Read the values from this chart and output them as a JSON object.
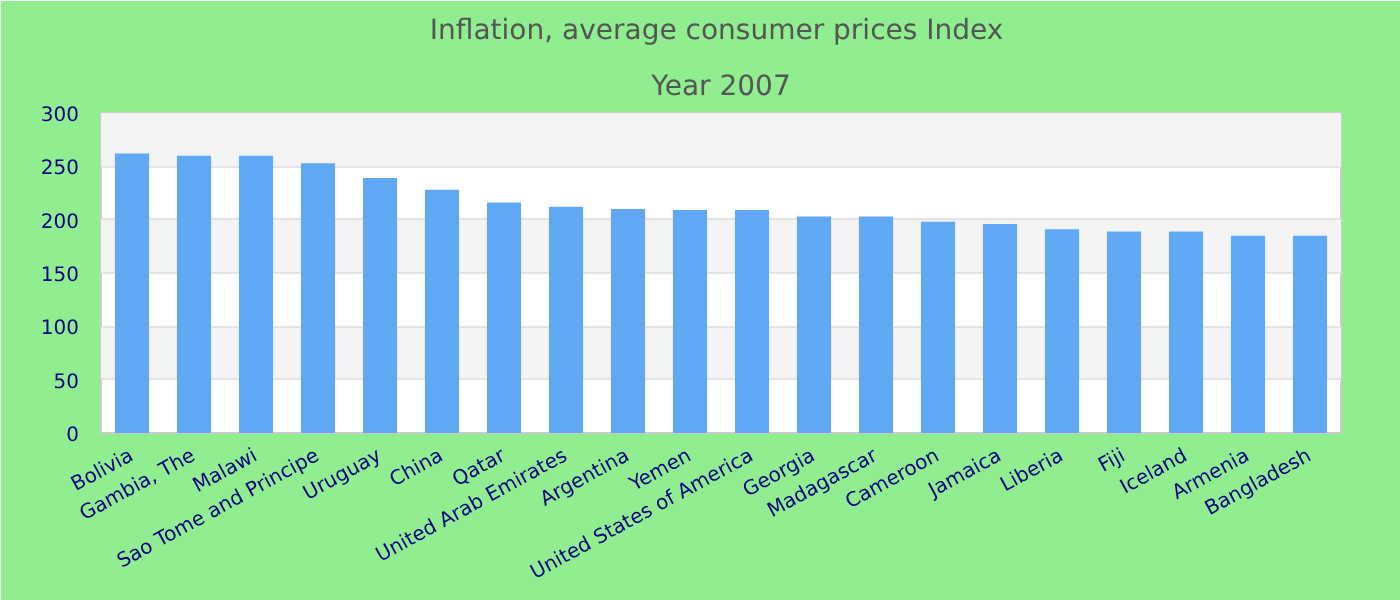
{
  "chart_data": {
    "type": "bar",
    "title": "Inflation, average consumer prices  Index",
    "subtitle": "Year 2007",
    "categories": [
      "Bolivia",
      "Gambia, The",
      "Malawi",
      "Sao Tome and Principe",
      "Uruguay",
      "China",
      "Qatar",
      "United Arab Emirates",
      "Argentina",
      "Yemen",
      "United States of America",
      "Georgia",
      "Madagascar",
      "Cameroon",
      "Jamaica",
      "Liberia",
      "Fiji",
      "Iceland",
      "Armenia",
      "Bangladesh"
    ],
    "values": [
      262,
      260,
      260,
      253,
      239,
      228,
      216,
      212,
      210,
      209,
      209,
      203,
      203,
      198,
      196,
      191,
      189,
      189,
      185,
      185
    ],
    "color": "#61a8f4",
    "ylim": [
      0,
      300
    ],
    "yticks": [
      0,
      50,
      100,
      150,
      200,
      250,
      300
    ],
    "grid": "y"
  }
}
